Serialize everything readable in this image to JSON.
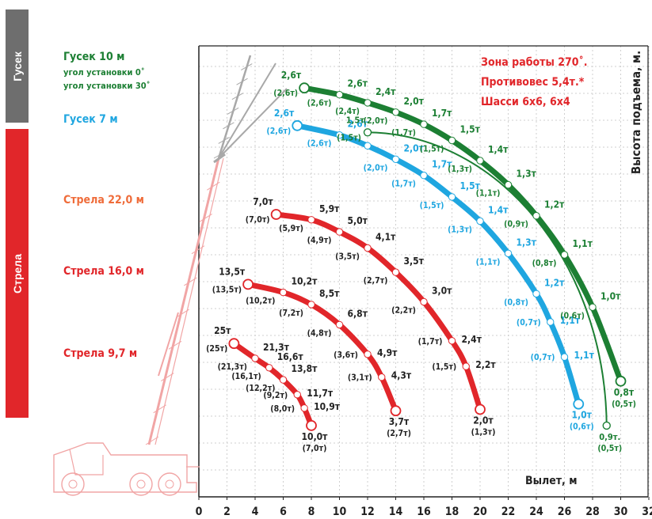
{
  "colors": {
    "red": "#e1262a",
    "blue": "#1fa6e0",
    "green": "#1c7f33",
    "gray": "#6e6e6e",
    "axis": "#222222",
    "grid": "#cfcfcf"
  },
  "side_tabs": {
    "gusek": "Гусек",
    "strela": "Стрела"
  },
  "legend": {
    "gusek10": "Гусек 10 м",
    "angle0": "угол установки 0˚",
    "angle30": "угол установки 30˚",
    "gusek7": "Гусек 7 м",
    "strela22": "Стрела 22,0 м",
    "strela16": "Стрела 16,0 м",
    "strela97": "Стрела 9,7 м"
  },
  "notes": {
    "zone": "Зона работы 270˚.",
    "counterweight": "Противовес 5,4т.*",
    "chassis": "Шасси 6х6, 6х4"
  },
  "chart_data": {
    "type": "line",
    "xlabel": "Вылет, м",
    "ylabel": "Высота подъема, м.",
    "xlim": [
      0,
      32
    ],
    "x_ticks": [
      "0",
      "2",
      "4",
      "6",
      "8",
      "10",
      "12",
      "14",
      "16",
      "18",
      "20",
      "22",
      "24",
      "26",
      "28",
      "30",
      "32"
    ],
    "grid": true,
    "series": [
      {
        "name": "Стрела 9,7 м",
        "color": "#e1262a",
        "width": "thick",
        "points": [
          {
            "x": 2.5,
            "y": 11.4,
            "label": "25т",
            "alt": "(25т)"
          },
          {
            "x": 4.0,
            "y": 10.3,
            "label": "21,3т",
            "alt": "(21,3т)"
          },
          {
            "x": 5.0,
            "y": 9.6,
            "label": "16,6т",
            "alt": "(16,1т)"
          },
          {
            "x": 6.0,
            "y": 8.7,
            "label": "13,8т",
            "alt": "(12,2т)"
          },
          {
            "x": 7.0,
            "y": 7.6,
            "label": "11,7т",
            "alt": "(9,2т)"
          },
          {
            "x": 7.5,
            "y": 6.6,
            "label": "10,9т",
            "alt": "(8,0т)"
          },
          {
            "x": 8.0,
            "y": 5.3,
            "label": "10,0т",
            "alt": "(7,0т)"
          }
        ]
      },
      {
        "name": "Стрела 16,0 м",
        "color": "#e1262a",
        "width": "thick",
        "points": [
          {
            "x": 3.5,
            "y": 15.8,
            "label": "13,5т",
            "alt": "(13,5т)"
          },
          {
            "x": 6.0,
            "y": 15.2,
            "label": "10,2т",
            "alt": "(10,2т)"
          },
          {
            "x": 8.0,
            "y": 14.3,
            "label": "8,5т",
            "alt": "(7,2т)"
          },
          {
            "x": 10.0,
            "y": 12.8,
            "label": "6,8т",
            "alt": "(4,8т)"
          },
          {
            "x": 12.0,
            "y": 10.6,
            "label": "4,9т",
            "alt": "(3,6т)"
          },
          {
            "x": 13.0,
            "y": 8.9,
            "label": "4,3т",
            "alt": "(3,1т)"
          },
          {
            "x": 14.0,
            "y": 6.4,
            "label": "3,7т",
            "alt": "(2,7т)"
          }
        ]
      },
      {
        "name": "Стрела 22,0 м",
        "color": "#e1262a",
        "width": "thick",
        "points": [
          {
            "x": 5.5,
            "y": 21.0,
            "label": "7,0т",
            "alt": "(7,0т)"
          },
          {
            "x": 8.0,
            "y": 20.6,
            "label": "5,9т",
            "alt": "(5,9т)"
          },
          {
            "x": 10.0,
            "y": 19.7,
            "label": "5,0т",
            "alt": "(4,9т)"
          },
          {
            "x": 12.0,
            "y": 18.5,
            "label": "4,1т",
            "alt": "(3,5т)"
          },
          {
            "x": 14.0,
            "y": 16.7,
            "label": "3,5т",
            "alt": "(2,7т)"
          },
          {
            "x": 16.0,
            "y": 14.5,
            "label": "3,0т",
            "alt": "(2,2т)"
          },
          {
            "x": 18.0,
            "y": 11.6,
            "label": "2,4т",
            "alt": "(1,7т)"
          },
          {
            "x": 19.0,
            "y": 9.7,
            "label": "2,2т",
            "alt": "(1,5т)"
          },
          {
            "x": 20.0,
            "y": 6.5,
            "label": "2,0т",
            "alt": "(1,3т)"
          }
        ]
      },
      {
        "name": "Гусек 7 м",
        "color": "#1fa6e0",
        "width": "thick",
        "points": [
          {
            "x": 7.0,
            "y": 27.6,
            "label": "2,6т",
            "alt": "(2,6т)"
          },
          {
            "x": 10.0,
            "y": 26.9,
            "label": "2,6т",
            "alt": "(2,6т)"
          },
          {
            "x": 12.0,
            "y": 26.1,
            "label": "",
            "alt": ""
          },
          {
            "x": 14.0,
            "y": 25.1,
            "label": "2,0т",
            "alt": "(2,0т)"
          },
          {
            "x": 16.0,
            "y": 23.9,
            "label": "1,7т",
            "alt": "(1,7т)"
          },
          {
            "x": 18.0,
            "y": 22.3,
            "label": "1,5т",
            "alt": "(1,5т)"
          },
          {
            "x": 20.0,
            "y": 20.5,
            "label": "1,4т",
            "alt": "(1,3т)"
          },
          {
            "x": 22.0,
            "y": 18.1,
            "label": "1,3т",
            "alt": "(1,1т)"
          },
          {
            "x": 24.0,
            "y": 15.1,
            "label": "1,2т",
            "alt": "(0,8т)"
          },
          {
            "x": 25.0,
            "y": 13.0,
            "label": "1,1т",
            "alt": "(0,7т)"
          },
          {
            "x": 26.0,
            "y": 10.4,
            "label": "1,1т",
            "alt": "(0,7т)"
          },
          {
            "x": 27.0,
            "y": 6.9,
            "label": "1,0т",
            "alt": "(0,6т)"
          }
        ]
      },
      {
        "name": "Гусек 10 м, угол установки 30˚",
        "color": "#1c7f33",
        "width": "thin",
        "points": [
          {
            "x": 12.0,
            "y": 27.1,
            "label": "1,5т",
            "alt": "(1,5т)"
          },
          {
            "x": 29.0,
            "y": 5.3,
            "label": "0,9т.",
            "alt": "(0,5т)"
          }
        ]
      },
      {
        "name": "Гусек 10 м, угол установки 0˚",
        "color": "#1c7f33",
        "width": "thick",
        "points": [
          {
            "x": 7.5,
            "y": 30.4,
            "label": "2,6т",
            "alt": "(2,6т)"
          },
          {
            "x": 10.0,
            "y": 29.9,
            "label": "2,6т",
            "alt": "(2,6т)"
          },
          {
            "x": 12.0,
            "y": 29.3,
            "label": "2,4т",
            "alt": "(2,4т)"
          },
          {
            "x": 14.0,
            "y": 28.6,
            "label": "2,0т",
            "alt": "(2,0т)"
          },
          {
            "x": 16.0,
            "y": 27.7,
            "label": "1,7т",
            "alt": "(1,7т)"
          },
          {
            "x": 18.0,
            "y": 26.5,
            "label": "1,5т",
            "alt": "(1,5т)"
          },
          {
            "x": 20.0,
            "y": 25.0,
            "label": "1,4т",
            "alt": "(1,3т)"
          },
          {
            "x": 22.0,
            "y": 23.2,
            "label": "1,3т",
            "alt": "(1,1т)"
          },
          {
            "x": 24.0,
            "y": 20.9,
            "label": "1,2т",
            "alt": "(0,9т)"
          },
          {
            "x": 26.0,
            "y": 18.0,
            "label": "1,1т",
            "alt": "(0,8т)"
          },
          {
            "x": 28.0,
            "y": 14.1,
            "label": "1,0т",
            "alt": "(0,6т)"
          },
          {
            "x": 30.0,
            "y": 8.6,
            "label": "0,8т",
            "alt": "(0,5т)"
          }
        ]
      }
    ]
  }
}
